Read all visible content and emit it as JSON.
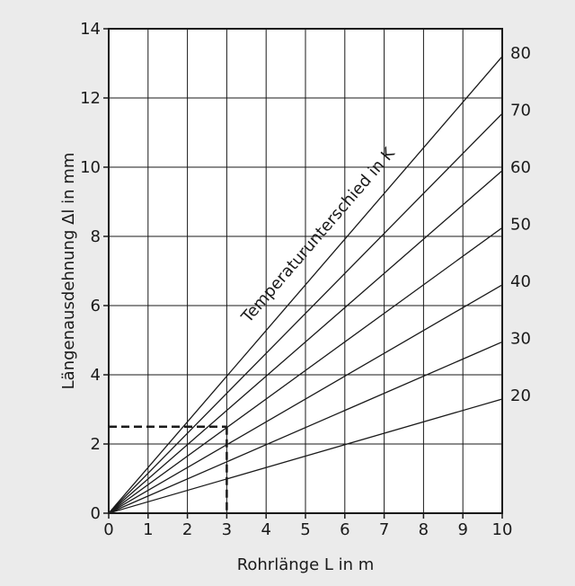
{
  "chart_data": {
    "type": "line",
    "xlabel": "Rohrlänge L in m",
    "ylabel": "Längenausdehnung Δl in mm",
    "xlim": [
      0,
      10
    ],
    "ylim": [
      0,
      14
    ],
    "x_ticks": [
      0,
      1,
      2,
      3,
      4,
      5,
      6,
      7,
      8,
      9,
      10
    ],
    "y_ticks": [
      0,
      2,
      4,
      6,
      8,
      10,
      12,
      14
    ],
    "grid": true,
    "annotation": "Temperaturunterschied in K",
    "series": [
      {
        "name": "20",
        "x": [
          0,
          10
        ],
        "y": [
          0,
          3.3
        ]
      },
      {
        "name": "30",
        "x": [
          0,
          10
        ],
        "y": [
          0,
          4.95
        ]
      },
      {
        "name": "40",
        "x": [
          0,
          10
        ],
        "y": [
          0,
          6.6
        ]
      },
      {
        "name": "50",
        "x": [
          0,
          10
        ],
        "y": [
          0,
          8.25
        ]
      },
      {
        "name": "60",
        "x": [
          0,
          10
        ],
        "y": [
          0,
          9.9
        ]
      },
      {
        "name": "70",
        "x": [
          0,
          10
        ],
        "y": [
          0,
          11.55
        ]
      },
      {
        "name": "80",
        "x": [
          0,
          10
        ],
        "y": [
          0,
          13.2
        ]
      }
    ],
    "example_reading": {
      "x": 3,
      "y": 2.5
    }
  }
}
